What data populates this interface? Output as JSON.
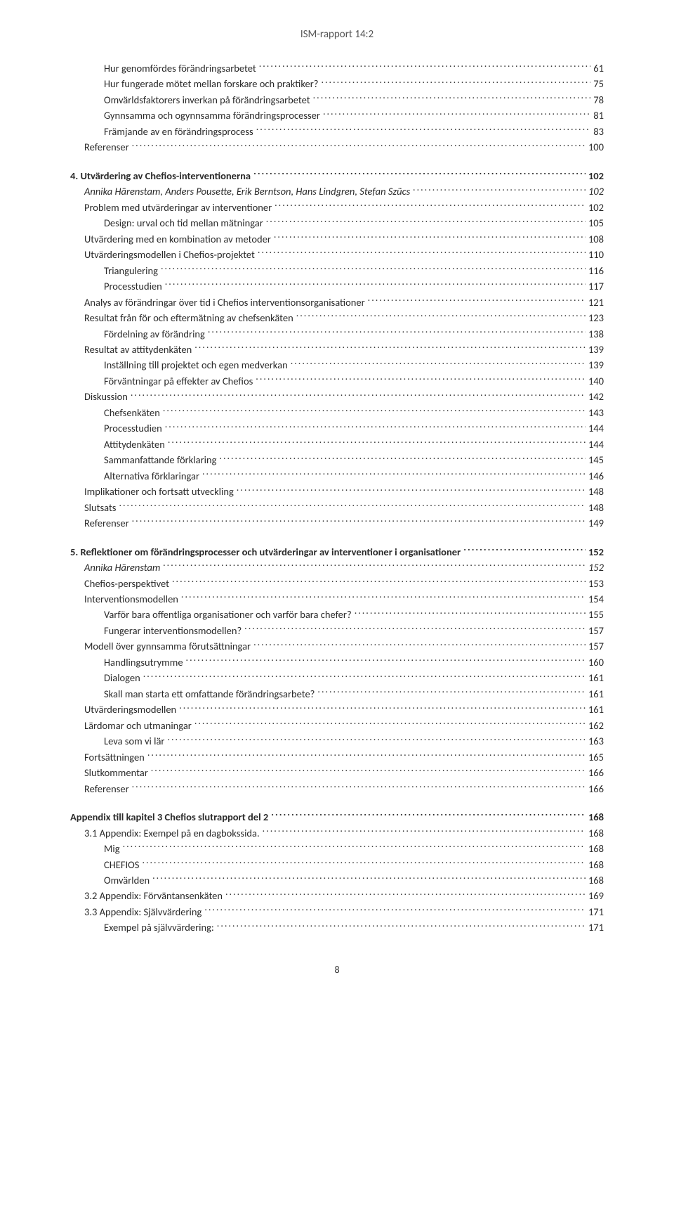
{
  "header": "ISM-rapport 14:2",
  "page_number": "8",
  "toc": [
    {
      "level": 3,
      "text": "Hur genomfördes förändringsarbetet",
      "page": "61"
    },
    {
      "level": 3,
      "text": "Hur fungerade mötet mellan forskare och praktiker?",
      "page": "75"
    },
    {
      "level": 3,
      "text": "Omvärldsfaktorers inverkan på förändringsarbetet",
      "page": "78"
    },
    {
      "level": 3,
      "text": "Gynnsamma och ogynnsamma förändringsprocesser",
      "page": "81"
    },
    {
      "level": 3,
      "text": "Främjande av en förändringsprocess",
      "page": "83"
    },
    {
      "level": 2,
      "text": "Referenser",
      "page": "100"
    },
    {
      "level": 0,
      "text": "4. Utvärdering av Chefios-interventionerna",
      "page": "102"
    },
    {
      "level": 1,
      "text": "Annika Härenstam, Anders Pousette, Erik Berntson, Hans Lindgren, Stefan Szücs",
      "page": "102"
    },
    {
      "level": 2,
      "text": "Problem med utvärderingar av interventioner",
      "page": "102"
    },
    {
      "level": 3,
      "text": "Design: urval och tid mellan mätningar",
      "page": "105"
    },
    {
      "level": 2,
      "text": "Utvärdering med en kombination av metoder",
      "page": "108"
    },
    {
      "level": 2,
      "text": "Utvärderingsmodellen i Chefios-projektet",
      "page": "110"
    },
    {
      "level": 3,
      "text": "Triangulering",
      "page": "116"
    },
    {
      "level": 3,
      "text": "Processtudien",
      "page": "117"
    },
    {
      "level": 2,
      "text": "Analys av förändringar över tid i Chefios interventionsorganisationer",
      "page": "121"
    },
    {
      "level": 2,
      "text": "Resultat från för och eftermätning av chefsenkäten",
      "page": "123"
    },
    {
      "level": 3,
      "text": "Fördelning av förändring",
      "page": "138"
    },
    {
      "level": 2,
      "text": "Resultat av attitydenkäten",
      "page": "139"
    },
    {
      "level": 3,
      "text": "Inställning till projektet och egen medverkan",
      "page": "139"
    },
    {
      "level": 3,
      "text": "Förväntningar på effekter av Chefios",
      "page": "140"
    },
    {
      "level": 2,
      "text": "Diskussion",
      "page": "142"
    },
    {
      "level": 3,
      "text": "Chefsenkäten",
      "page": "143"
    },
    {
      "level": 3,
      "text": "Processtudien",
      "page": "144"
    },
    {
      "level": 3,
      "text": "Attitydenkäten",
      "page": "144"
    },
    {
      "level": 3,
      "text": "Sammanfattande förklaring",
      "page": "145"
    },
    {
      "level": 3,
      "text": "Alternativa förklaringar",
      "page": "146"
    },
    {
      "level": 2,
      "text": "Implikationer och fortsatt utveckling",
      "page": "148"
    },
    {
      "level": 2,
      "text": "Slutsats",
      "page": "148"
    },
    {
      "level": 2,
      "text": "Referenser",
      "page": "149"
    },
    {
      "level": 0,
      "text": "5. Reflektioner om förändringsprocesser och utvärderingar av interventioner i organisationer",
      "page": "152"
    },
    {
      "level": 1,
      "text": "Annika Härenstam",
      "page": "152"
    },
    {
      "level": 2,
      "text": "Chefios-perspektivet",
      "page": "153"
    },
    {
      "level": 2,
      "text": "Interventionsmodellen",
      "page": "154"
    },
    {
      "level": 3,
      "text": "Varför bara offentliga organisationer och varför bara chefer?",
      "page": "155"
    },
    {
      "level": 3,
      "text": "Fungerar interventionsmodellen?",
      "page": "157"
    },
    {
      "level": 2,
      "text": "Modell över gynnsamma förutsättningar",
      "page": "157"
    },
    {
      "level": 3,
      "text": "Handlingsutrymme",
      "page": "160"
    },
    {
      "level": 3,
      "text": "Dialogen",
      "page": "161"
    },
    {
      "level": 3,
      "text": "Skall man starta ett omfattande förändringsarbete?",
      "page": "161"
    },
    {
      "level": 2,
      "text": "Utvärderingsmodellen",
      "page": "161"
    },
    {
      "level": 2,
      "text": "Lärdomar och utmaningar",
      "page": "162"
    },
    {
      "level": 3,
      "text": "Leva som vi lär",
      "page": "163"
    },
    {
      "level": 2,
      "text": "Fortsättningen",
      "page": "165"
    },
    {
      "level": 2,
      "text": "Slutkommentar",
      "page": "166"
    },
    {
      "level": 2,
      "text": "Referenser",
      "page": "166"
    },
    {
      "level": 0,
      "text": "Appendix till kapitel 3 Chefios slutrapport del 2",
      "page": "168"
    },
    {
      "level": 2,
      "text": "3.1 Appendix: Exempel på en dagbokssida.",
      "page": "168"
    },
    {
      "level": 3,
      "text": "Mig",
      "page": "168"
    },
    {
      "level": 3,
      "text": "CHEFIOS",
      "page": "168"
    },
    {
      "level": 3,
      "text": "Omvärlden",
      "page": "168"
    },
    {
      "level": 2,
      "text": "3.2 Appendix: Förväntansenkäten",
      "page": "169"
    },
    {
      "level": 2,
      "text": "3.3 Appendix: Självvärdering",
      "page": "171"
    },
    {
      "level": 3,
      "text": "Exempel på självvärdering:",
      "page": "171"
    }
  ]
}
